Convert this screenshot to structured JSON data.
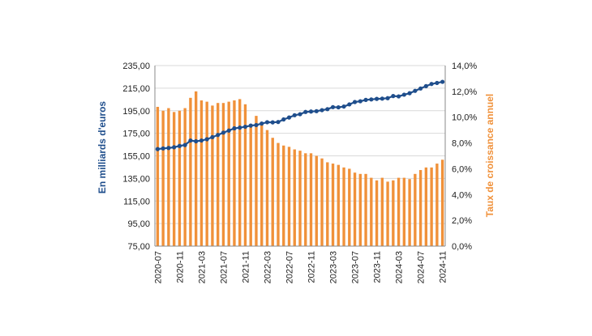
{
  "chart_data": {
    "type": "bar+line",
    "title": "",
    "ylabel_left": "En milliards d'euros",
    "ylabel_right": "Taux de croissance annuel",
    "ylim_left": [
      75,
      235
    ],
    "ylim_right": [
      0,
      14
    ],
    "yticks_left": [
      "75,00",
      "95,00",
      "115,00",
      "135,00",
      "155,00",
      "175,00",
      "195,00",
      "215,00",
      "235,00"
    ],
    "yticks_right": [
      "0,0%",
      "2,0%",
      "4,0%",
      "6,0%",
      "8,0%",
      "10,0%",
      "12,0%",
      "14,0%"
    ],
    "x_tick_labels": [
      "2020-07",
      "2020-11",
      "2021-03",
      "2021-07",
      "2021-11",
      "2022-03",
      "2022-07",
      "2022-11",
      "2023-03",
      "2023-07",
      "2023-11",
      "2024-03",
      "2024-07",
      "2024-11"
    ],
    "grid": "horizontal",
    "legend": "none",
    "categories": [
      "2020-07",
      "2020-08",
      "2020-09",
      "2020-10",
      "2020-11",
      "2020-12",
      "2021-01",
      "2021-02",
      "2021-03",
      "2021-04",
      "2021-05",
      "2021-06",
      "2021-07",
      "2021-08",
      "2021-09",
      "2021-10",
      "2021-11",
      "2021-12",
      "2022-01",
      "2022-02",
      "2022-03",
      "2022-04",
      "2022-05",
      "2022-06",
      "2022-07",
      "2022-08",
      "2022-09",
      "2022-10",
      "2022-11",
      "2022-12",
      "2023-01",
      "2023-02",
      "2023-03",
      "2023-04",
      "2023-05",
      "2023-06",
      "2023-07",
      "2023-08",
      "2023-09",
      "2023-10",
      "2023-11",
      "2023-12",
      "2024-01",
      "2024-02",
      "2024-03",
      "2024-04",
      "2024-05",
      "2024-06",
      "2024-07",
      "2024-08",
      "2024-09",
      "2024-10",
      "2024-11"
    ],
    "series": [
      {
        "axis": "right",
        "kind": "bar",
        "color": "#f0913a",
        "values": [
          10.8,
          10.5,
          10.7,
          10.4,
          10.5,
          10.7,
          11.5,
          12.0,
          11.3,
          11.2,
          10.9,
          11.1,
          11.1,
          11.2,
          11.3,
          11.4,
          11.0,
          9.4,
          10.1,
          9.5,
          9.0,
          8.4,
          8.0,
          7.8,
          7.7,
          7.5,
          7.4,
          7.2,
          7.2,
          7.0,
          6.8,
          6.5,
          6.4,
          6.3,
          6.1,
          6.0,
          5.7,
          5.6,
          5.6,
          5.3,
          5.1,
          5.3,
          5.0,
          5.1,
          5.3,
          5.3,
          5.2,
          5.6,
          5.9,
          6.1,
          6.1,
          6.4,
          6.7
        ]
      },
      {
        "axis": "left",
        "kind": "line",
        "color": "#1f4e8c",
        "values": [
          161.0,
          161.6,
          162.0,
          162.6,
          163.8,
          164.6,
          168.6,
          167.9,
          168.6,
          169.7,
          171.6,
          173.5,
          175.6,
          177.4,
          179.4,
          180.0,
          180.8,
          181.8,
          182.3,
          183.6,
          184.8,
          184.7,
          185.0,
          187.3,
          189.0,
          191.0,
          191.9,
          193.9,
          194.3,
          194.6,
          195.5,
          196.4,
          198.2,
          198.0,
          198.7,
          200.6,
          202.7,
          203.4,
          204.6,
          205.0,
          205.5,
          205.7,
          206.1,
          208.0,
          207.7,
          209.2,
          210.5,
          212.6,
          214.7,
          216.8,
          218.7,
          219.6,
          220.6
        ]
      }
    ]
  }
}
